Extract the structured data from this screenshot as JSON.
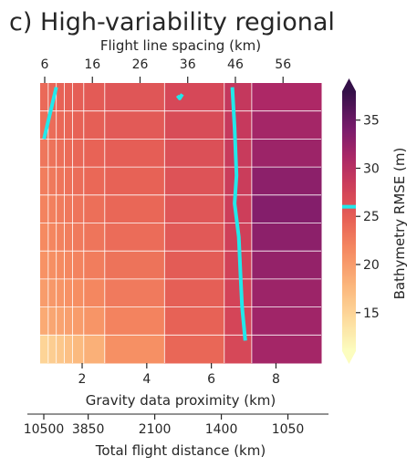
{
  "chart_data": {
    "type": "heatmap",
    "title": "c) High-variability regional",
    "x_top": {
      "label": "Flight line spacing (km)",
      "ticks": [
        6,
        16,
        26,
        36,
        46,
        56
      ],
      "range": [
        6,
        64
      ]
    },
    "x_bottom": {
      "label": "Gravity data proximity (km)",
      "ticks": [
        2,
        4,
        6,
        8
      ],
      "range": [
        0.7,
        9.4
      ]
    },
    "x_bottom2": {
      "label": "Total flight distance (km)",
      "tick_labels": [
        "10500",
        "3850",
        "2100",
        "1400",
        "1050"
      ],
      "at_flight_spacing_km": [
        2,
        6,
        12,
        18,
        24
      ]
    },
    "colorbar": {
      "label": "Bathymetry RMSE (m)",
      "ticks": [
        15,
        20,
        25,
        30,
        35
      ],
      "range": [
        11,
        38
      ],
      "extend": "both",
      "marker_value": 26,
      "marker_color": "#22e8ea"
    },
    "y_rows": 10,
    "column_edges_gravity_km": [
      0.7,
      0.95,
      1.2,
      1.45,
      1.7,
      2.05,
      2.7,
      4.55,
      6.4,
      7.25,
      9.4
    ],
    "cell_values": [
      [
        24.0,
        24.3,
        24.6,
        24.8,
        25.0,
        25.3,
        25.8,
        27.2,
        29.0,
        31.0
      ],
      [
        23.5,
        23.8,
        24.1,
        24.3,
        24.6,
        24.9,
        25.4,
        26.8,
        28.8,
        31.5
      ],
      [
        23.0,
        23.3,
        23.6,
        23.9,
        24.2,
        24.5,
        25.0,
        26.4,
        28.6,
        32.0
      ],
      [
        22.5,
        22.8,
        23.1,
        23.4,
        23.7,
        24.1,
        24.6,
        26.1,
        28.4,
        33.0
      ],
      [
        22.0,
        22.3,
        22.6,
        22.9,
        23.2,
        23.6,
        24.2,
        25.8,
        28.2,
        33.5
      ],
      [
        21.5,
        21.8,
        22.1,
        22.4,
        22.7,
        23.1,
        23.8,
        25.5,
        28.0,
        33.0
      ],
      [
        20.8,
        21.1,
        21.4,
        21.7,
        22.0,
        22.5,
        23.3,
        25.2,
        27.8,
        32.5
      ],
      [
        20.0,
        20.3,
        20.6,
        20.9,
        21.2,
        21.7,
        22.7,
        24.9,
        27.6,
        32.0
      ],
      [
        18.8,
        19.1,
        19.4,
        19.7,
        20.0,
        20.6,
        22.0,
        24.6,
        27.4,
        31.8
      ],
      [
        15.0,
        15.6,
        16.2,
        16.8,
        17.4,
        18.3,
        21.0,
        24.2,
        27.2,
        31.5
      ]
    ],
    "contour_lines": [
      {
        "value": 26,
        "color": "#22e8ea",
        "points": [
          [
            1.2,
            0.15
          ],
          [
            0.82,
            2.0
          ]
        ]
      },
      {
        "value": 26,
        "color": "#22e8ea",
        "points": [
          [
            4.95,
            0.45
          ],
          [
            5.02,
            0.55
          ],
          [
            5.1,
            0.4
          ]
        ]
      },
      {
        "value": 26,
        "color": "#22e8ea",
        "points": [
          [
            6.65,
            0.15
          ],
          [
            6.72,
            1.6
          ],
          [
            6.78,
            3.3
          ],
          [
            6.72,
            4.3
          ],
          [
            6.85,
            5.5
          ],
          [
            6.9,
            6.8
          ],
          [
            6.95,
            8.0
          ],
          [
            7.05,
            9.2
          ]
        ]
      }
    ],
    "grid": true
  }
}
